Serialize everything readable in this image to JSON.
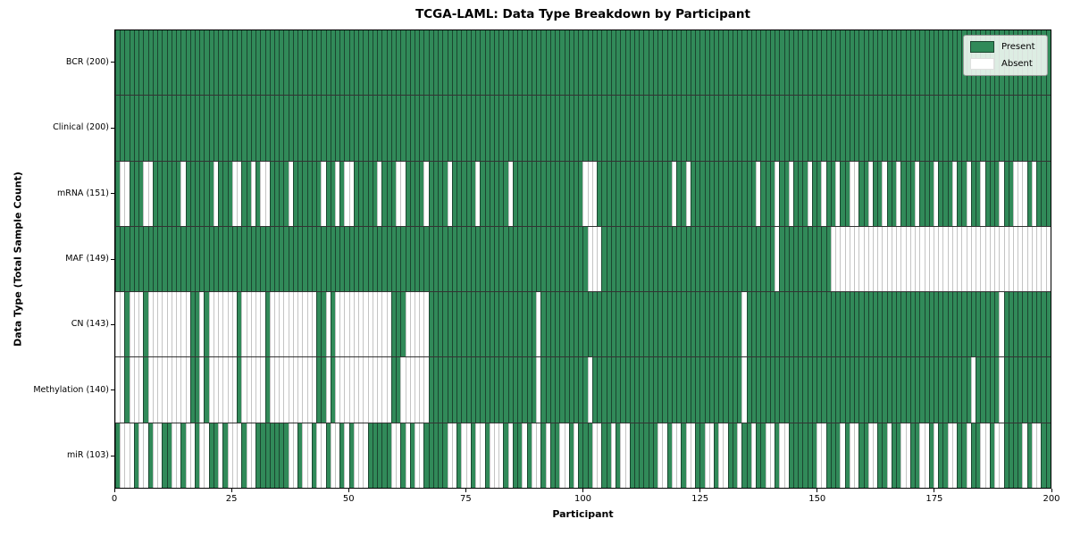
{
  "title": "TCGA-LAML: Data Type Breakdown by Participant",
  "colors": {
    "present": "#318a59",
    "present_edge": "#1b4630",
    "absent": "#ffffff",
    "absent_edge": "#c4c4c4"
  },
  "legend": {
    "present_label": "Present",
    "absent_label": "Absent"
  },
  "chart_data": {
    "type": "heatmap",
    "title": "TCGA-LAML: Data Type Breakdown by Participant",
    "xlabel": "Participant",
    "ylabel": "Data Type (Total Sample Count)",
    "legend_entries": [
      "Present",
      "Absent"
    ],
    "legend_position": "upper right",
    "grid": false,
    "x_axis": {
      "min": 0,
      "max": 200,
      "ticks": [
        0,
        25,
        50,
        75,
        100,
        125,
        150,
        175,
        200
      ]
    },
    "rows": [
      {
        "label": "BCR (200)",
        "present_count": 200,
        "absent_indices": []
      },
      {
        "label": "Clinical (200)",
        "present_count": 200,
        "absent_indices": []
      },
      {
        "label": "mRNA (151)",
        "present_count": 151,
        "absent_indices": [
          1,
          2,
          6,
          7,
          14,
          21,
          25,
          26,
          29,
          31,
          32,
          37,
          44,
          47,
          49,
          50,
          56,
          60,
          61,
          66,
          71,
          77,
          84,
          100,
          101,
          102,
          119,
          122,
          137,
          141,
          144,
          148,
          151,
          154,
          157,
          158,
          161,
          164,
          167,
          171,
          175,
          179,
          182,
          185,
          189,
          192,
          193,
          194,
          196
        ]
      },
      {
        "label": "MAF (149)",
        "present_count": 149,
        "absent_indices": [
          101,
          102,
          103,
          141,
          153,
          154,
          155,
          156,
          157,
          158,
          159,
          160,
          161,
          162,
          163,
          164,
          165,
          166,
          167,
          168,
          169,
          170,
          171,
          172,
          173,
          174,
          175,
          176,
          177,
          178,
          179,
          180,
          181,
          182,
          183,
          184,
          185,
          186,
          187,
          188,
          189,
          190,
          191,
          192,
          193,
          194,
          195,
          196,
          197,
          198,
          199
        ]
      },
      {
        "label": "CN (143)",
        "present_count": 143,
        "absent_indices": [
          0,
          1,
          3,
          4,
          5,
          7,
          8,
          9,
          10,
          11,
          12,
          13,
          14,
          15,
          18,
          20,
          21,
          22,
          23,
          24,
          25,
          27,
          28,
          29,
          30,
          31,
          33,
          34,
          35,
          36,
          37,
          38,
          39,
          40,
          41,
          42,
          45,
          47,
          48,
          49,
          50,
          51,
          52,
          53,
          54,
          55,
          56,
          57,
          58,
          62,
          63,
          64,
          65,
          66,
          90,
          134,
          189
        ]
      },
      {
        "label": "Methylation (140)",
        "present_count": 140,
        "absent_indices": [
          0,
          1,
          3,
          4,
          5,
          7,
          8,
          9,
          10,
          11,
          12,
          13,
          14,
          15,
          18,
          20,
          21,
          22,
          23,
          24,
          25,
          27,
          28,
          29,
          30,
          31,
          33,
          34,
          35,
          36,
          37,
          38,
          39,
          40,
          41,
          42,
          45,
          47,
          48,
          49,
          50,
          51,
          52,
          53,
          54,
          55,
          56,
          57,
          58,
          61,
          62,
          63,
          64,
          65,
          66,
          90,
          101,
          134,
          183,
          189
        ]
      },
      {
        "label": "miR (103)",
        "present_count": 103,
        "absent_indices": [
          1,
          2,
          3,
          5,
          6,
          8,
          9,
          12,
          13,
          15,
          16,
          18,
          19,
          22,
          24,
          25,
          26,
          28,
          29,
          37,
          38,
          40,
          41,
          43,
          44,
          46,
          47,
          49,
          51,
          52,
          53,
          59,
          60,
          62,
          64,
          65,
          71,
          72,
          74,
          75,
          77,
          78,
          80,
          81,
          82,
          84,
          87,
          89,
          90,
          92,
          95,
          96,
          98,
          102,
          103,
          106,
          108,
          109,
          116,
          117,
          119,
          120,
          122,
          123,
          126,
          127,
          129,
          130,
          133,
          136,
          139,
          140,
          142,
          143,
          150,
          151,
          155,
          157,
          158,
          161,
          162,
          165,
          168,
          169,
          172,
          173,
          175,
          178,
          179,
          182,
          185,
          186,
          188,
          189,
          194,
          196,
          197
        ]
      }
    ]
  }
}
